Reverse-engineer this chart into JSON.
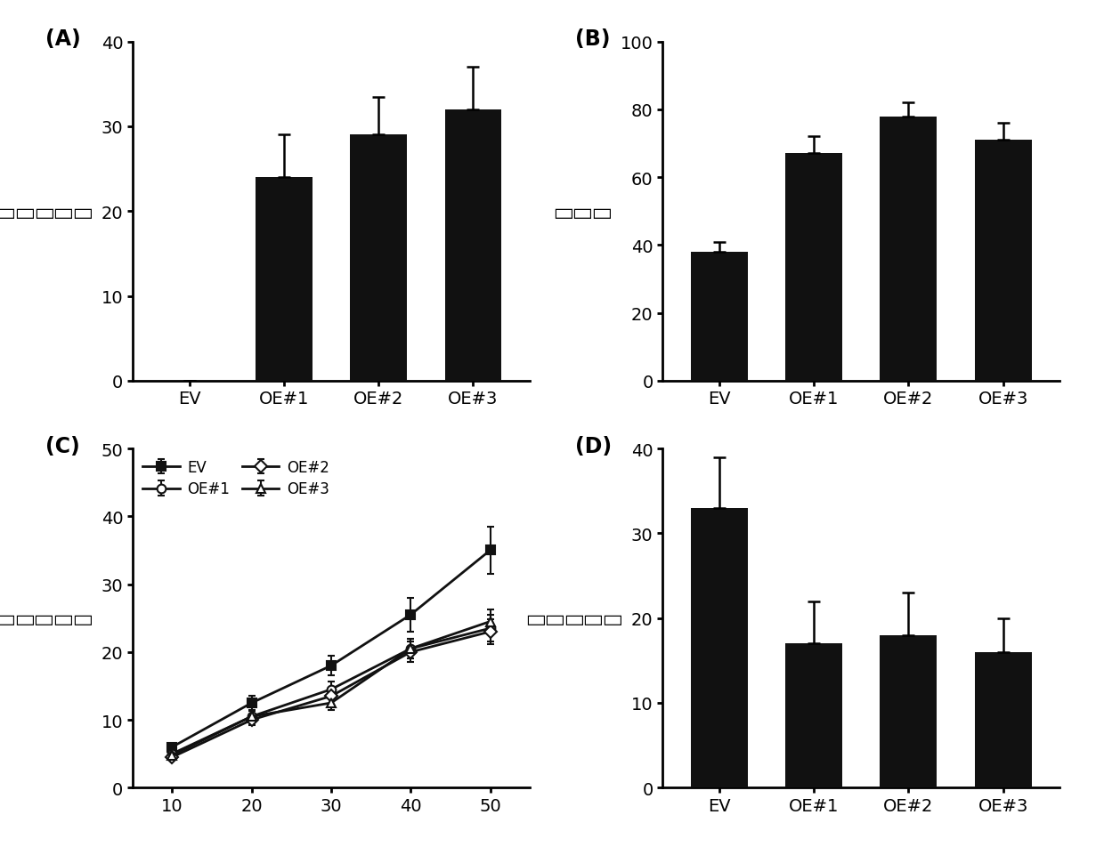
{
  "panel_A": {
    "label": "(A)",
    "categories": [
      "EV",
      "OE#1",
      "OE#2",
      "OE#3"
    ],
    "values": [
      0,
      24,
      29,
      32
    ],
    "errors": [
      0,
      5,
      4.5,
      5
    ],
    "ylim": [
      0,
      40
    ],
    "yticks": [
      0,
      10,
      20,
      30,
      40
    ],
    "ylabel_chars": [
      "基",
      "因",
      "相",
      "对",
      "表",
      "达",
      "量"
    ]
  },
  "panel_B": {
    "label": "(B)",
    "categories": [
      "EV",
      "OE#1",
      "OE#2",
      "OE#3"
    ],
    "values": [
      38,
      67,
      78,
      71
    ],
    "errors": [
      3,
      5,
      4,
      5
    ],
    "ylim": [
      0,
      100
    ],
    "yticks": [
      0,
      20,
      40,
      60,
      80,
      100
    ],
    "ylabel_chars": [
      "存",
      "活",
      "率"
    ]
  },
  "panel_C": {
    "label": "(C)",
    "x": [
      10,
      20,
      30,
      40,
      50
    ],
    "series_EV": {
      "values": [
        6.0,
        12.5,
        18.0,
        25.5,
        35.0
      ],
      "errors": [
        0.5,
        1.0,
        1.5,
        2.5,
        3.5
      ],
      "marker": "s"
    },
    "series_OE1": {
      "values": [
        5.0,
        10.5,
        14.5,
        20.5,
        23.5
      ],
      "errors": [
        0.4,
        0.8,
        1.2,
        1.5,
        2.0
      ],
      "marker": "o"
    },
    "series_OE2": {
      "values": [
        4.5,
        10.0,
        13.5,
        20.0,
        23.0
      ],
      "errors": [
        0.4,
        0.8,
        1.2,
        1.5,
        1.8
      ],
      "marker": "D"
    },
    "series_OE3": {
      "values": [
        4.8,
        10.5,
        12.5,
        20.5,
        24.5
      ],
      "errors": [
        0.4,
        0.8,
        1.0,
        1.5,
        1.8
      ],
      "marker": "^"
    },
    "ylim": [
      0,
      50
    ],
    "yticks": [
      0,
      10,
      20,
      30,
      40,
      50
    ],
    "xticks": [
      10,
      20,
      30,
      40,
      50
    ],
    "ylabel_chars": [
      "叶",
      "片",
      "相",
      "对",
      "失",
      "水",
      "率"
    ]
  },
  "panel_D": {
    "label": "(D)",
    "categories": [
      "EV",
      "OE#1",
      "OE#2",
      "OE#3"
    ],
    "values": [
      33,
      17,
      18,
      16
    ],
    "errors": [
      6,
      5,
      5,
      4
    ],
    "ylim": [
      0,
      40
    ],
    "yticks": [
      0,
      10,
      20,
      30,
      40
    ],
    "ylabel_chars": [
      "相",
      "对",
      "电",
      "导",
      "率"
    ]
  },
  "bar_color": "#111111",
  "fontsize_label": 15,
  "fontsize_tick": 14,
  "fontsize_panel": 17,
  "fontsize_ylabel": 16
}
